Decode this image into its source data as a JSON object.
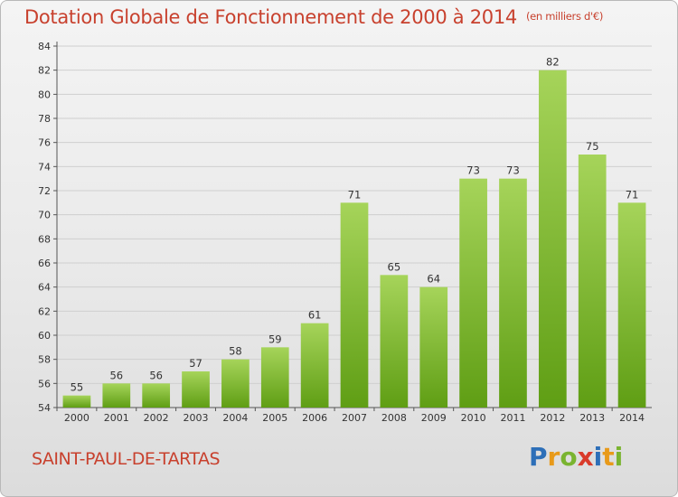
{
  "header": {
    "title": "Dotation Globale de Fonctionnement de 2000 à 2014",
    "subtitle": "(en milliers d'€)"
  },
  "footer": {
    "commune": "SAINT-PAUL-DE-TARTAS",
    "logo_letters": [
      "P",
      "r",
      "o",
      "x",
      "i",
      "t",
      "i"
    ],
    "logo_colors": [
      "#2d6fb8",
      "#e89a1a",
      "#7ab430",
      "#d93a2a",
      "#2d6fb8",
      "#e89a1a",
      "#7ab430"
    ]
  },
  "colors": {
    "bar_light": "#a6d45a",
    "bar_dark": "#5f9e14",
    "grid": "#cfcfcf",
    "accent": "#c8412e"
  },
  "chart_data": {
    "type": "bar",
    "title": "Dotation Globale de Fonctionnement de 2000 à 2014",
    "subtitle": "(en milliers d'€)",
    "categories": [
      "2000",
      "2001",
      "2002",
      "2003",
      "2004",
      "2005",
      "2006",
      "2007",
      "2008",
      "2009",
      "2010",
      "2011",
      "2012",
      "2013",
      "2014"
    ],
    "values": [
      55,
      56,
      56,
      57,
      58,
      59,
      61,
      71,
      65,
      64,
      73,
      73,
      82,
      75,
      71
    ],
    "ylim": [
      54,
      84
    ],
    "yticks": [
      54,
      56,
      58,
      60,
      62,
      64,
      66,
      68,
      70,
      72,
      74,
      76,
      78,
      80,
      82,
      84
    ],
    "grid": true,
    "xlabel": "",
    "ylabel": ""
  }
}
